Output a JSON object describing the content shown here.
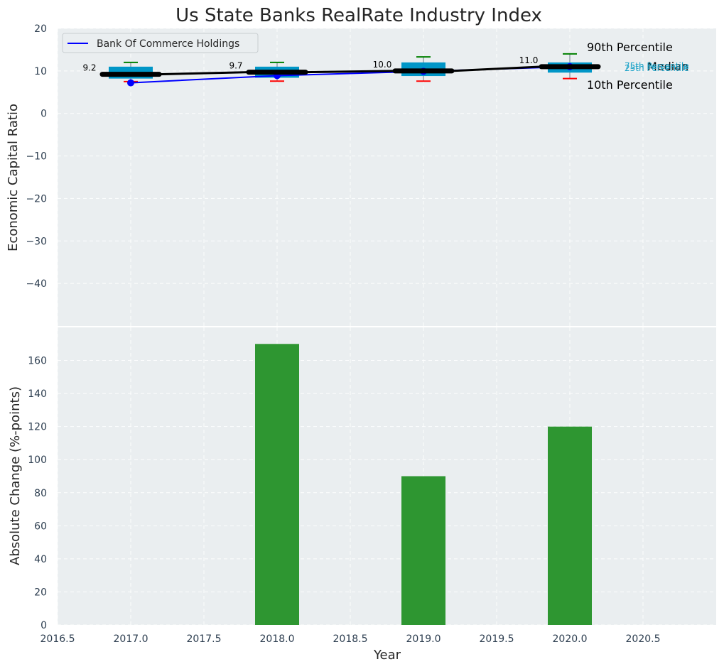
{
  "chart_data": {
    "title": "Us State Banks RealRate Industry Index",
    "x_axis": {
      "label": "Year",
      "range": [
        2016.5,
        2021.0
      ],
      "ticks": [
        2016.5,
        2017.0,
        2017.5,
        2018.0,
        2018.5,
        2019.0,
        2019.5,
        2020.0,
        2020.5
      ],
      "tick_labels": [
        "2016.5",
        "2017.0",
        "2017.5",
        "2018.0",
        "2018.5",
        "2019.0",
        "2019.5",
        "2020.0",
        "2020.5"
      ]
    },
    "top_panel": {
      "type": "box+line",
      "ylabel": "Economic Capital Ratio",
      "ylim": [
        -50,
        20
      ],
      "y_ticks": [
        20,
        10,
        0,
        -10,
        -20,
        -30,
        -40
      ],
      "y_tick_labels": [
        "20",
        "10",
        "0",
        "−10",
        "−20",
        "−30",
        "−40"
      ],
      "legend": {
        "label": "Bank Of Commerce Holdings",
        "color": "#0000ff",
        "position": "top-left"
      },
      "years": [
        2017,
        2018,
        2019,
        2020
      ],
      "p10": [
        7.5,
        7.6,
        7.6,
        8.2
      ],
      "p25": [
        8.2,
        8.4,
        8.8,
        9.6
      ],
      "median": [
        9.2,
        9.7,
        10.0,
        11.0
      ],
      "p75": [
        11.0,
        11.0,
        12.0,
        12.0
      ],
      "p90": [
        12.0,
        12.0,
        13.3,
        14.0
      ],
      "median_labels": [
        "9.2",
        "9.7",
        "10.0",
        "11.0"
      ],
      "bank_values": [
        7.2,
        8.9,
        9.9,
        11.0
      ],
      "percentile_labels": {
        "p90": "90th Percentile",
        "median": "Median",
        "p10": "10th Percentile",
        "p75": "75th Percentile",
        "p25": "25th Percentile"
      },
      "colors": {
        "box": "#0096c7",
        "p90_whisker": "#008000",
        "p10_whisker": "#ff0000",
        "median": "#000000",
        "bank": "#0000ff",
        "small_label": "#1ca3c8"
      }
    },
    "bottom_panel": {
      "type": "bar",
      "ylabel": "Absolute Change (%-points)",
      "ylim": [
        0,
        180
      ],
      "y_ticks": [
        0,
        20,
        40,
        60,
        80,
        100,
        120,
        140,
        160
      ],
      "y_tick_labels": [
        "0",
        "20",
        "40",
        "60",
        "80",
        "100",
        "120",
        "140",
        "160"
      ],
      "x": [
        2018,
        2019,
        2020
      ],
      "values": [
        170,
        90,
        120
      ],
      "bar_color": "#2e9631"
    }
  }
}
